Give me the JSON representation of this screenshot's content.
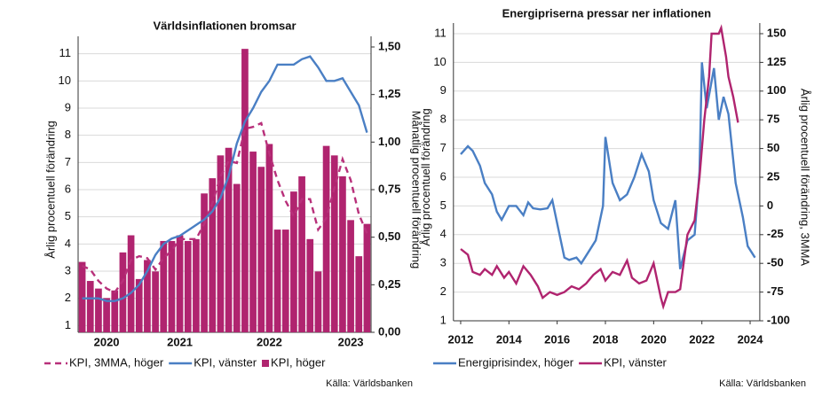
{
  "chart_data": [
    {
      "type": "combo",
      "title": "Världsinflationen bromsar",
      "ylabel": "Årlig procentuell förändring",
      "y2label": "Månatlig procentuell förändring",
      "categories": [
        null,
        null,
        null,
        "2020",
        null,
        null,
        null,
        null,
        null,
        null,
        null,
        null,
        "2021",
        null,
        null,
        null,
        null,
        null,
        null,
        null,
        null,
        null,
        null,
        "2022",
        null,
        null,
        null,
        null,
        null,
        null,
        null,
        null,
        null,
        "2023",
        null,
        null
      ],
      "ylim": [
        0.75,
        11.25
      ],
      "yticks": [
        1,
        2,
        3,
        4,
        5,
        6,
        7,
        8,
        9,
        10,
        11
      ],
      "y2lim": [
        0,
        1.5
      ],
      "y2ticks": [
        {
          "value": 0,
          "label": "0,00"
        },
        {
          "value": 0.25,
          "label": "0,25"
        },
        {
          "value": 0.5,
          "label": "0,50"
        },
        {
          "value": 0.75,
          "label": "0,75"
        },
        {
          "value": 1,
          "label": "1,00"
        },
        {
          "value": 1.25,
          "label": "1,25"
        },
        {
          "value": 1.5,
          "label": "1,50"
        }
      ],
      "grid": true,
      "series": [
        {
          "name": "KPI, 3MMA, höger",
          "type": "line",
          "dash": true,
          "axis": "y2",
          "color": "#b8307a",
          "values": [
            0.35,
            0.33,
            0.27,
            0.23,
            0.21,
            0.27,
            0.38,
            0.4,
            0.39,
            0.33,
            0.39,
            0.43,
            0.49,
            0.49,
            0.49,
            0.57,
            0.68,
            0.82,
            0.9,
            0.89,
            1.07,
            1.08,
            1.1,
            0.94,
            0.8,
            0.69,
            0.61,
            0.7,
            0.7,
            0.54,
            0.6,
            0.76,
            0.91,
            0.8,
            0.62,
            0.52
          ]
        },
        {
          "name": "KPI, vänster",
          "type": "line",
          "color": "#4a7fc4",
          "values": [
            2.0,
            2.0,
            2.0,
            1.9,
            1.9,
            2.0,
            2.2,
            2.5,
            3.0,
            3.6,
            4.0,
            4.2,
            4.3,
            4.5,
            4.7,
            4.9,
            5.2,
            5.7,
            6.5,
            7.7,
            8.5,
            9.0,
            9.6,
            10.0,
            10.6,
            10.6,
            10.6,
            10.8,
            10.9,
            10.5,
            10.0,
            10.0,
            10.1,
            9.6,
            9.1,
            8.1
          ]
        },
        {
          "name": "KPI, höger",
          "type": "bar",
          "axis": "y2",
          "color": "#b0246f",
          "values": [
            0.37,
            0.27,
            0.23,
            0.18,
            0.22,
            0.42,
            0.51,
            0.28,
            0.38,
            0.32,
            0.48,
            0.48,
            0.51,
            0.48,
            0.49,
            0.73,
            0.81,
            0.93,
            0.97,
            0.78,
            1.49,
            0.95,
            0.87,
            0.99,
            0.54,
            0.54,
            0.74,
            0.82,
            0.49,
            0.32,
            0.98,
            0.93,
            0.82,
            0.59,
            0.4,
            0.57
          ]
        }
      ],
      "source": "Källa: Världsbanken"
    },
    {
      "type": "line",
      "title": "Energipriserna pressar ner inflationen",
      "ylabel": "Årlig procentuell förändring",
      "y2label": "Årlig procentuell förändring, 3MMA",
      "xlim": [
        2011.7,
        2024.4
      ],
      "xticks": [
        2012,
        2014,
        2016,
        2018,
        2020,
        2022,
        2024
      ],
      "ylim": [
        1,
        11
      ],
      "yticks": [
        1,
        2,
        3,
        4,
        5,
        6,
        7,
        8,
        9,
        10,
        11
      ],
      "y2lim": [
        -100,
        150
      ],
      "y2ticks": [
        -100,
        -75,
        -50,
        -25,
        0,
        25,
        50,
        75,
        100,
        125,
        150
      ],
      "grid": true,
      "series": [
        {
          "name": "Energiprisindex, höger",
          "axis": "y2",
          "color": "#4a7fc4",
          "x": [
            2012.0,
            2012.3,
            2012.5,
            2012.8,
            2013.0,
            2013.3,
            2013.5,
            2013.7,
            2014.0,
            2014.3,
            2014.6,
            2014.8,
            2015.0,
            2015.3,
            2015.6,
            2015.8,
            2016.0,
            2016.3,
            2016.5,
            2016.8,
            2017.0,
            2017.3,
            2017.6,
            2017.9,
            2018.0,
            2018.3,
            2018.6,
            2018.9,
            2019.2,
            2019.5,
            2019.8,
            2020.0,
            2020.3,
            2020.6,
            2020.9,
            2021.1,
            2021.4,
            2021.7,
            2021.9,
            2022.0,
            2022.2,
            2022.5,
            2022.7,
            2022.9,
            2023.1,
            2023.4,
            2023.7,
            2023.9,
            2024.2
          ],
          "values": [
            45,
            52,
            48,
            35,
            20,
            10,
            -5,
            -12,
            0,
            0,
            -8,
            3,
            -2,
            -3,
            -2,
            5,
            -15,
            -45,
            -47,
            -45,
            -50,
            -40,
            -30,
            0,
            60,
            20,
            5,
            10,
            25,
            45,
            30,
            5,
            -15,
            -20,
            5,
            -55,
            -30,
            -25,
            30,
            125,
            85,
            120,
            75,
            95,
            80,
            20,
            -10,
            -35,
            -45
          ]
        },
        {
          "name": "KPI, vänster",
          "color": "#b0246f",
          "x": [
            2012.0,
            2012.3,
            2012.5,
            2012.8,
            2013.0,
            2013.3,
            2013.5,
            2013.8,
            2014.0,
            2014.3,
            2014.6,
            2014.9,
            2015.2,
            2015.4,
            2015.7,
            2016.0,
            2016.3,
            2016.6,
            2016.9,
            2017.2,
            2017.5,
            2017.8,
            2018.0,
            2018.3,
            2018.6,
            2018.9,
            2019.1,
            2019.4,
            2019.7,
            2020.0,
            2020.3,
            2020.4,
            2020.6,
            2020.9,
            2021.1,
            2021.4,
            2021.7,
            2021.9,
            2022.1,
            2022.3,
            2022.4,
            2022.7,
            2022.8,
            2023.0,
            2023.1,
            2023.3,
            2023.5
          ],
          "values": [
            3.5,
            3.3,
            2.7,
            2.6,
            2.8,
            2.6,
            2.9,
            2.5,
            2.7,
            2.3,
            2.9,
            2.6,
            2.2,
            1.8,
            2.0,
            1.9,
            2.0,
            2.2,
            2.1,
            2.3,
            2.6,
            2.8,
            2.4,
            2.7,
            2.6,
            3.1,
            2.5,
            2.3,
            2.4,
            3.0,
            1.8,
            1.5,
            2.0,
            2.0,
            2.1,
            4.0,
            4.5,
            6.0,
            8.0,
            9.5,
            11.0,
            11.0,
            11.2,
            10.2,
            9.5,
            8.8,
            7.9
          ]
        }
      ],
      "source": "Källa: Världsbanken"
    }
  ]
}
